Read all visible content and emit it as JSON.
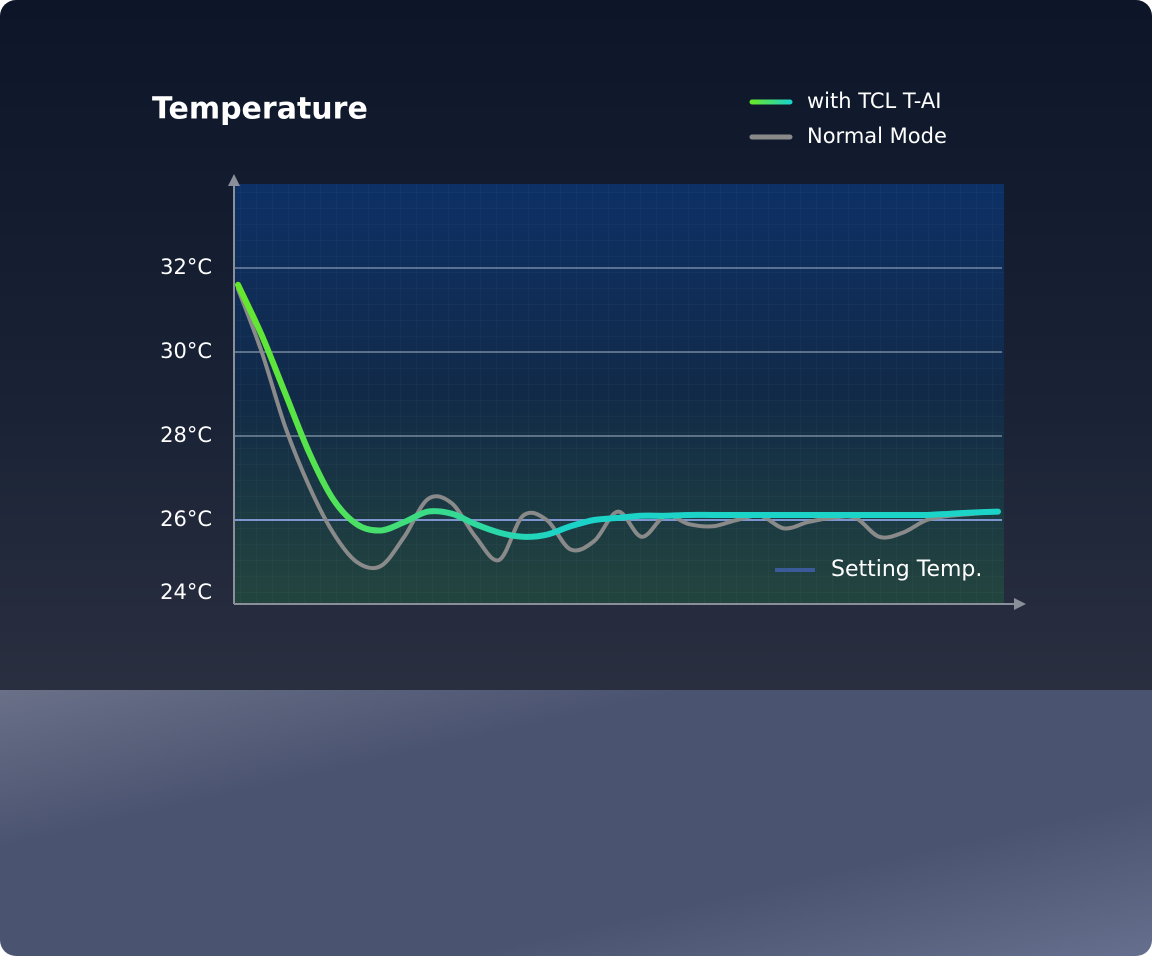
{
  "chart_data": {
    "type": "line",
    "title": "Temperature",
    "categories": [
      null,
      null,
      null,
      null,
      null,
      null,
      null,
      null,
      null,
      null,
      null,
      null,
      null,
      null,
      null,
      null,
      null,
      null,
      null,
      null,
      null,
      null,
      null,
      null,
      null,
      null,
      null,
      null,
      null,
      null,
      null,
      null,
      null
    ],
    "series": [
      {
        "name": "with TCL T-AI",
        "color": "#1cd3c8",
        "gradient_start": "#66e82a",
        "values": [
          31.6,
          30.4,
          29.0,
          27.6,
          26.5,
          25.9,
          25.75,
          25.95,
          26.2,
          26.15,
          25.9,
          25.7,
          25.6,
          25.65,
          25.85,
          26.0,
          26.05,
          26.1,
          26.1,
          26.12,
          26.12,
          26.12,
          26.12,
          26.12,
          26.12,
          26.12,
          26.12,
          26.12,
          26.12,
          26.12,
          26.15,
          26.18,
          26.2
        ]
      },
      {
        "name": "Normal Mode",
        "color": "#8a8a8a",
        "values": [
          31.5,
          30.0,
          28.2,
          26.8,
          25.7,
          25.0,
          24.9,
          25.6,
          26.5,
          26.4,
          25.6,
          25.05,
          26.1,
          26.0,
          25.3,
          25.5,
          26.2,
          25.6,
          26.1,
          25.9,
          25.85,
          26.0,
          26.1,
          25.8,
          25.95,
          26.05,
          26.05,
          25.6,
          25.7,
          26.0,
          26.1,
          26.15,
          26.2
        ]
      }
    ],
    "ylim": [
      24,
      34
    ],
    "yticks": [
      {
        "value": 24,
        "label": "24°C"
      },
      {
        "value": 26,
        "label": "26°C"
      },
      {
        "value": 28,
        "label": "28°C"
      },
      {
        "value": 30,
        "label": "30°C"
      },
      {
        "value": 32,
        "label": "32°C"
      }
    ],
    "grid": true,
    "setting_temp": {
      "value": 26,
      "label": "Setting Temp.",
      "color": "#3b5a9a"
    }
  }
}
